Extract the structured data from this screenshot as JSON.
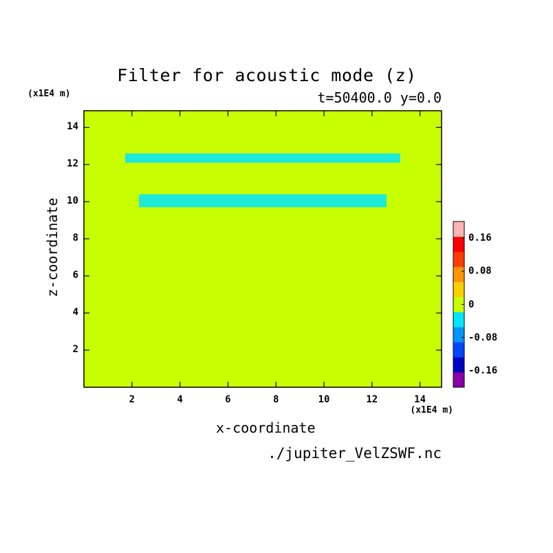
{
  "chart_data": {
    "type": "heatmap",
    "title": "Filter for acoustic mode (z)",
    "subtitle": "t=50400.0 y=0.0",
    "xlabel": "x-coordinate",
    "ylabel": "z-coordinate",
    "x_unit": "(x1E4 m)",
    "y_unit": "(x1E4 m)",
    "xlim": [
      0.0,
      14.9
    ],
    "ylim": [
      0.0,
      14.9
    ],
    "x_ticks": [
      "2",
      "4",
      "6",
      "8",
      "10",
      "12",
      "14"
    ],
    "y_ticks": [
      "2",
      "4",
      "6",
      "8",
      "10",
      "12",
      "14"
    ],
    "colorbar": {
      "levels": [
        -0.2,
        -0.16,
        -0.12,
        -0.08,
        -0.04,
        0,
        0.04,
        0.08,
        0.12,
        0.16,
        0.2
      ],
      "colors": [
        "#8b00a8",
        "#0000c8",
        "#0046ff",
        "#0096ff",
        "#00e6ff",
        "#c8ff00",
        "#ffd000",
        "#ff9600",
        "#ff3c00",
        "#ff0000",
        "#ffb4b4"
      ],
      "tick_labels": [
        "0.16",
        "0.08",
        "0",
        "-0.08",
        "-0.16"
      ]
    },
    "field": "predominantly two-level pattern: values slightly below 0 (cyan) and slightly above 0 (yellow-green), mirror-symmetric about x=7.5, with horizontal banding"
  },
  "source_file": "./jupiter_VelZSWF.nc"
}
